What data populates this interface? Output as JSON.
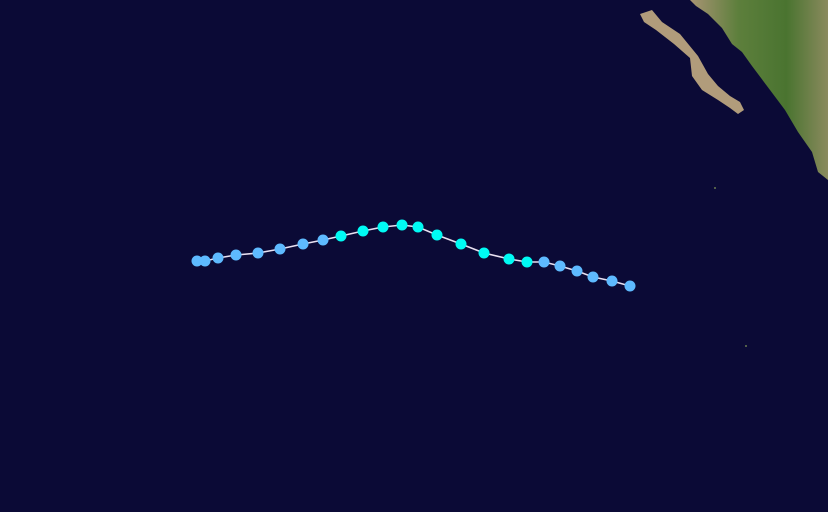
{
  "map": {
    "ocean_color": "#0b0a36",
    "land_colors": {
      "desert": "#b39d7a",
      "vegetation": "#4f7a35"
    },
    "track_line_color": "#e8e0f0",
    "legend_colors": {
      "tropical_depression": "#5ebaff",
      "tropical_storm": "#00faf4"
    },
    "track_points": [
      "TD",
      "TD",
      "TD",
      "TD",
      "TD",
      "TD",
      "TD",
      "TD",
      "TS",
      "TS",
      "TS",
      "TS",
      "TS",
      "TS",
      "TS",
      "TS",
      "TS",
      "TS",
      "TD",
      "TD",
      "TD",
      "TD",
      "TD",
      "TD"
    ]
  }
}
